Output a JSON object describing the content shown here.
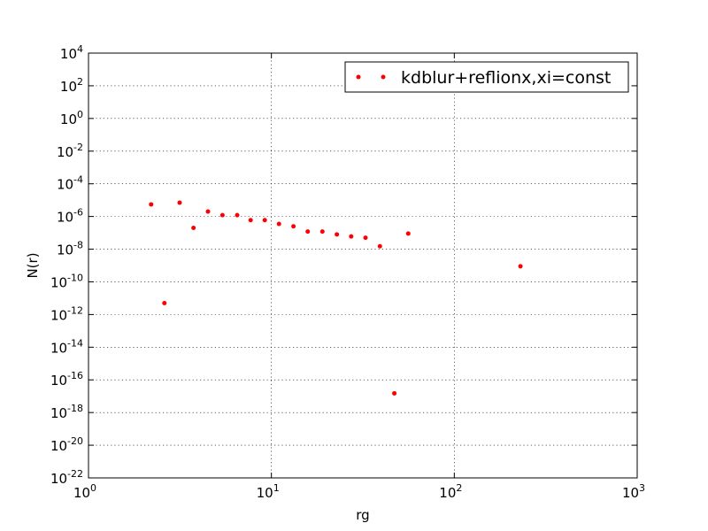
{
  "chart_data": {
    "type": "scatter",
    "xscale": "log",
    "yscale": "log",
    "xlabel": "rg",
    "ylabel": "N(r)",
    "xlim": [
      1,
      1000
    ],
    "ylim": [
      1e-22,
      10000.0
    ],
    "xticks": [
      {
        "base": "10",
        "exp": "0",
        "value": 1
      },
      {
        "base": "10",
        "exp": "1",
        "value": 10
      },
      {
        "base": "10",
        "exp": "2",
        "value": 100
      },
      {
        "base": "10",
        "exp": "3",
        "value": 1000
      }
    ],
    "yticks": [
      {
        "base": "10",
        "exp": "4",
        "value": 10000.0
      },
      {
        "base": "10",
        "exp": "2",
        "value": 100.0
      },
      {
        "base": "10",
        "exp": "0",
        "value": 1
      },
      {
        "base": "10",
        "exp": "-2",
        "value": 0.01
      },
      {
        "base": "10",
        "exp": "-4",
        "value": 0.0001
      },
      {
        "base": "10",
        "exp": "-6",
        "value": 1e-06
      },
      {
        "base": "10",
        "exp": "-8",
        "value": 1e-08
      },
      {
        "base": "10",
        "exp": "-10",
        "value": 1e-10
      },
      {
        "base": "10",
        "exp": "-12",
        "value": 1e-12
      },
      {
        "base": "10",
        "exp": "-14",
        "value": 1e-14
      },
      {
        "base": "10",
        "exp": "-16",
        "value": 1e-16
      },
      {
        "base": "10",
        "exp": "-18",
        "value": 1e-18
      },
      {
        "base": "10",
        "exp": "-20",
        "value": 1e-20
      },
      {
        "base": "10",
        "exp": "-22",
        "value": 1e-22
      }
    ],
    "grid": true,
    "legend_position": "top-right",
    "series": [
      {
        "name": "kdblur+reflionx,xi=const",
        "color": "#ff0000",
        "marker": "dot",
        "points": [
          {
            "x": 2.2,
            "y": 5.5e-06
          },
          {
            "x": 2.6,
            "y": 5e-12
          },
          {
            "x": 3.15,
            "y": 7e-06
          },
          {
            "x": 3.75,
            "y": 2e-07
          },
          {
            "x": 4.5,
            "y": 2e-06
          },
          {
            "x": 5.4,
            "y": 1.2e-06
          },
          {
            "x": 6.5,
            "y": 1.2e-06
          },
          {
            "x": 7.7,
            "y": 6e-07
          },
          {
            "x": 9.2,
            "y": 6e-07
          },
          {
            "x": 11,
            "y": 3.5e-07
          },
          {
            "x": 13.2,
            "y": 2.5e-07
          },
          {
            "x": 15.8,
            "y": 1.2e-07
          },
          {
            "x": 19,
            "y": 1.2e-07
          },
          {
            "x": 22.8,
            "y": 8e-08
          },
          {
            "x": 27.3,
            "y": 6e-08
          },
          {
            "x": 32.7,
            "y": 5e-08
          },
          {
            "x": 39.2,
            "y": 1.5e-08
          },
          {
            "x": 47,
            "y": 1.5e-17
          },
          {
            "x": 56,
            "y": 9e-08
          },
          {
            "x": 230,
            "y": 9e-10
          }
        ]
      }
    ]
  }
}
